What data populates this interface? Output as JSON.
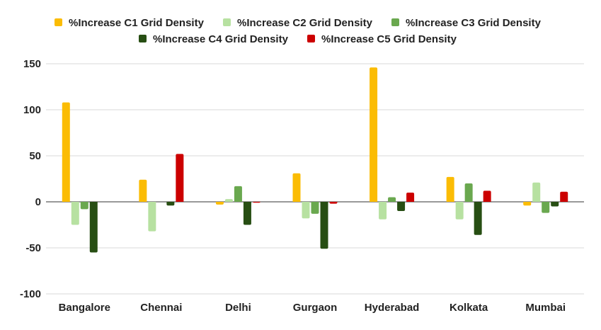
{
  "chart_data": {
    "type": "bar",
    "title": "",
    "xlabel": "",
    "ylabel": "",
    "categories": [
      "Bangalore",
      "Chennai",
      "Delhi",
      "Gurgaon",
      "Hyderabad",
      "Kolkata",
      "Mumbai"
    ],
    "series": [
      {
        "name": "%Increase C1 Grid Density",
        "color": "#fbbc04",
        "values": [
          108,
          24,
          -3,
          31,
          146,
          27,
          -4
        ]
      },
      {
        "name": "%Increase C2 Grid Density",
        "color": "#b7e1a1",
        "values": [
          -25,
          -32,
          3,
          -18,
          -19,
          -19,
          21
        ]
      },
      {
        "name": "%Increase C3 Grid Density",
        "color": "#6aa84f",
        "values": [
          -8,
          0,
          17,
          -13,
          5,
          20,
          -12
        ]
      },
      {
        "name": "%Increase C4 Grid Density",
        "color": "#274e13",
        "values": [
          -55,
          -4,
          -25,
          -51,
          -10,
          -36,
          -5
        ]
      },
      {
        "name": "%Increase C5 Grid Density",
        "color": "#cc0000",
        "values": [
          0,
          52,
          -1,
          -2,
          10,
          12,
          11
        ]
      }
    ],
    "ylim": [
      -100,
      150
    ],
    "yticks": [
      150,
      100,
      50,
      0,
      -50,
      -100
    ],
    "grid": true,
    "legend_position": "top"
  }
}
